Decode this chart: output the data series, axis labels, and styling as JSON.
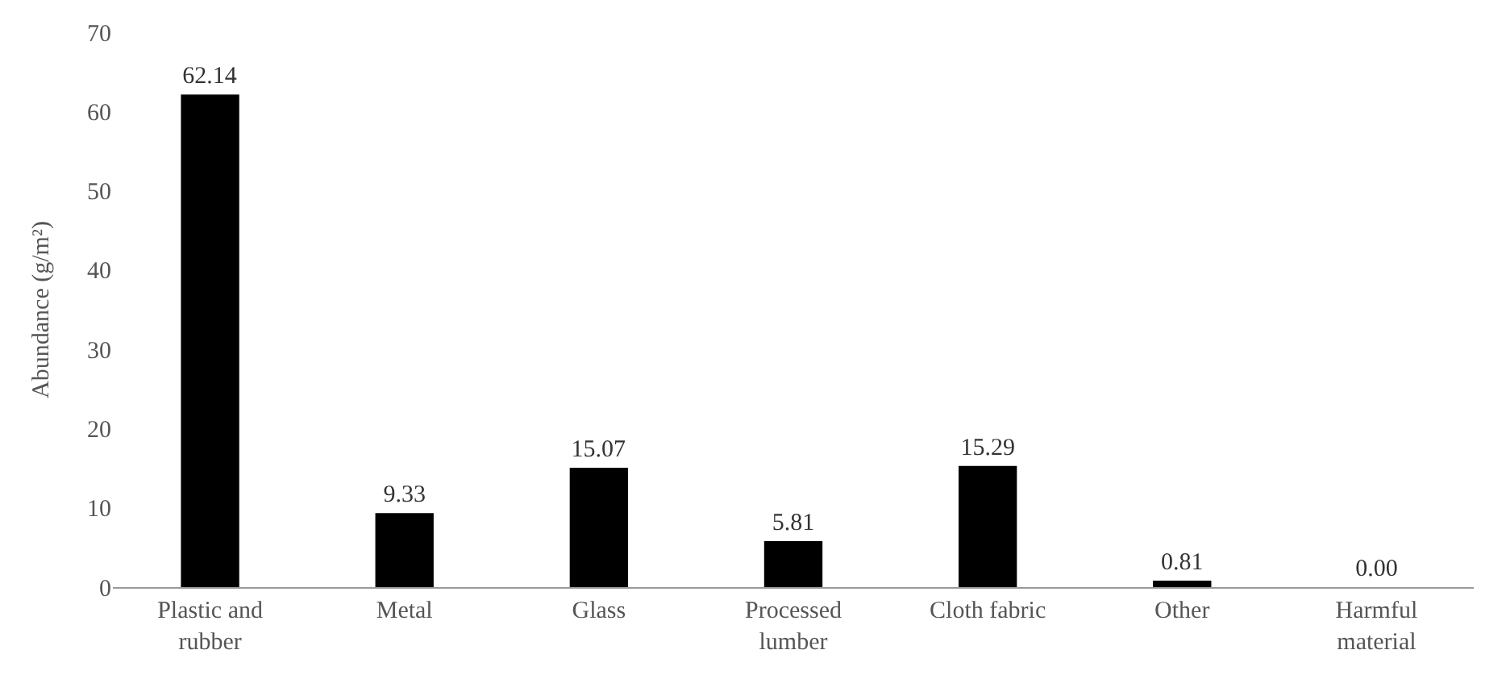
{
  "chart_data": {
    "type": "bar",
    "ylabel": "Abundance (g/m²)",
    "categories": [
      "Plastic and rubber",
      "Metal",
      "Glass",
      "Processed lumber",
      "Cloth fabric",
      "Other",
      "Harmful material"
    ],
    "values": [
      62.14,
      9.33,
      15.07,
      5.81,
      15.29,
      0.81,
      0.0
    ],
    "value_labels": [
      "62.14",
      "9.33",
      "15.07",
      "5.81",
      "15.29",
      "0.81",
      "0.00"
    ],
    "color": "#000000",
    "ylim": [
      0,
      70
    ],
    "yticks": [
      0,
      10,
      20,
      30,
      40,
      50,
      60,
      70
    ],
    "grid": false
  }
}
